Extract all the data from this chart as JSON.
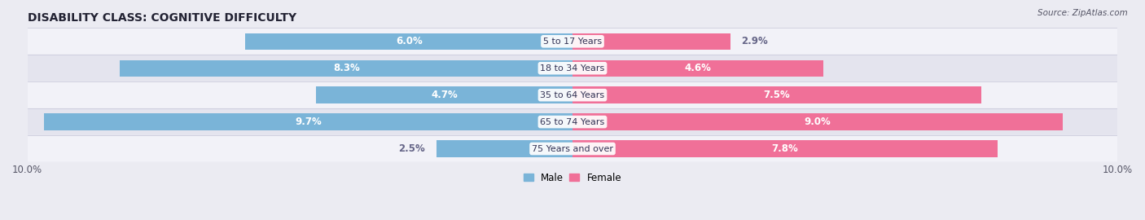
{
  "title": "DISABILITY CLASS: COGNITIVE DIFFICULTY",
  "source": "Source: ZipAtlas.com",
  "categories": [
    "5 to 17 Years",
    "18 to 34 Years",
    "35 to 64 Years",
    "65 to 74 Years",
    "75 Years and over"
  ],
  "male_values": [
    6.0,
    8.3,
    4.7,
    9.7,
    2.5
  ],
  "female_values": [
    2.9,
    4.6,
    7.5,
    9.0,
    7.8
  ],
  "x_min": -10.0,
  "x_max": 10.0,
  "male_color": "#7ab4d8",
  "female_color": "#f07098",
  "male_label": "Male",
  "female_label": "Female",
  "bar_height": 0.62,
  "bg_color": "#ebebf2",
  "row_bg_light": "#f2f2f8",
  "row_bg_dark": "#e4e4ee",
  "title_fontsize": 10,
  "label_fontsize": 8.5,
  "tick_fontsize": 8.5,
  "source_fontsize": 7.5
}
